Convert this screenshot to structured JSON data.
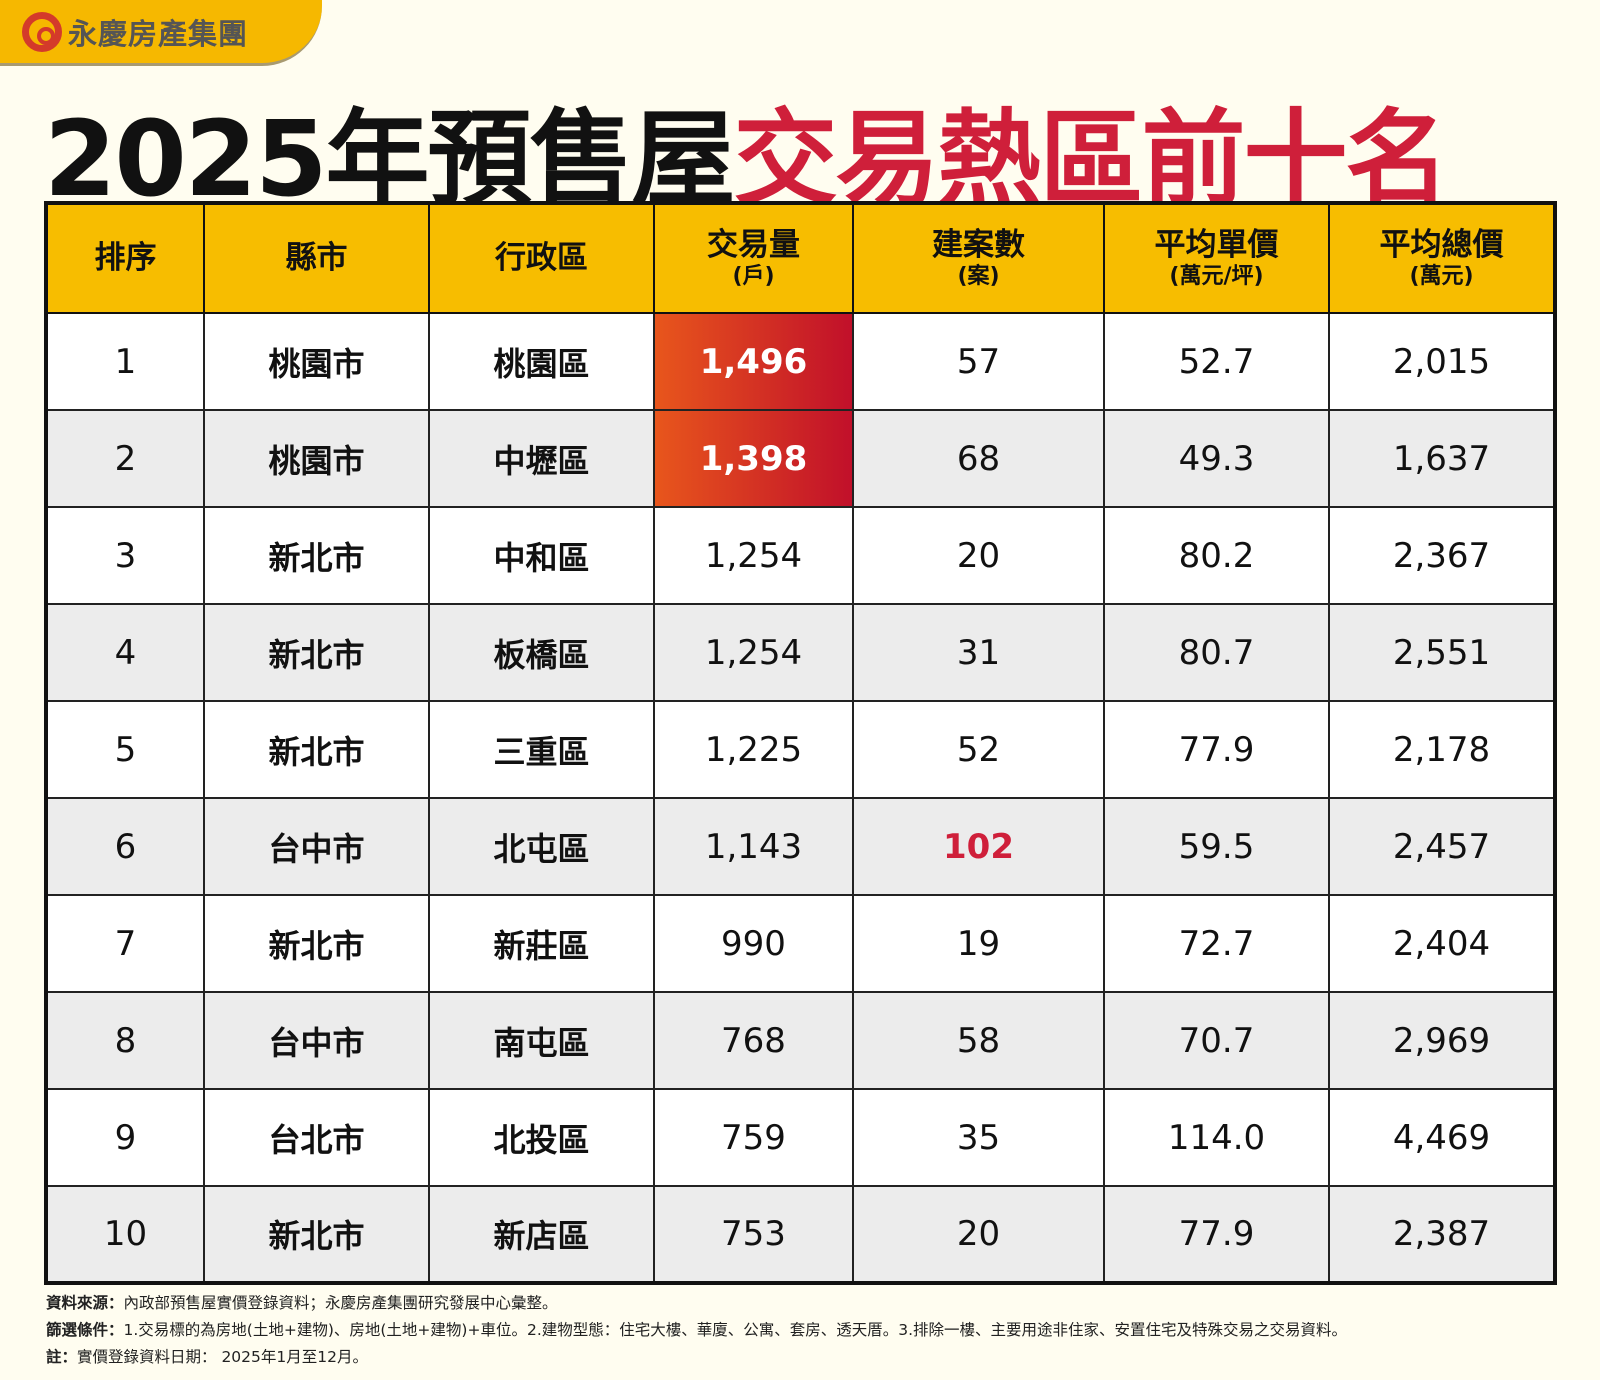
{
  "logo": {
    "text": "永慶房產集團"
  },
  "title": {
    "part1": "2025年預售屋",
    "part2": "交易熱區前十名"
  },
  "columns": [
    {
      "label": "排序",
      "unit": ""
    },
    {
      "label": "縣市",
      "unit": ""
    },
    {
      "label": "行政區",
      "unit": ""
    },
    {
      "label": "交易量",
      "unit": "(戶)"
    },
    {
      "label": "建案數",
      "unit": "(案)"
    },
    {
      "label": "平均單價",
      "unit": "(萬元/坪)"
    },
    {
      "label": "平均總價",
      "unit": "(萬元)"
    }
  ],
  "rows": [
    [
      "1",
      "桃園市",
      "桃園區",
      "1,496",
      "57",
      "52.7",
      "2,015"
    ],
    [
      "2",
      "桃園市",
      "中壢區",
      "1,398",
      "68",
      "49.3",
      "1,637"
    ],
    [
      "3",
      "新北市",
      "中和區",
      "1,254",
      "20",
      "80.2",
      "2,367"
    ],
    [
      "4",
      "新北市",
      "板橋區",
      "1,254",
      "31",
      "80.7",
      "2,551"
    ],
    [
      "5",
      "新北市",
      "三重區",
      "1,225",
      "52",
      "77.9",
      "2,178"
    ],
    [
      "6",
      "台中市",
      "北屯區",
      "1,143",
      "102",
      "59.5",
      "2,457"
    ],
    [
      "7",
      "新北市",
      "新莊區",
      "990",
      "19",
      "72.7",
      "2,404"
    ],
    [
      "8",
      "台中市",
      "南屯區",
      "768",
      "58",
      "70.7",
      "2,969"
    ],
    [
      "9",
      "台北市",
      "北投區",
      "759",
      "35",
      "114.0",
      "4,469"
    ],
    [
      "10",
      "新北市",
      "新店區",
      "753",
      "20",
      "77.9",
      "2,387"
    ]
  ],
  "colors": {
    "accent": "#cf1f3a",
    "header": "#f7bd00"
  },
  "notes": [
    {
      "label": "資料來源：",
      "text": "內政部預售屋實價登錄資料；永慶房產集團研究發展中心彙整。"
    },
    {
      "label": "篩選條件：",
      "text": "1.交易標的為房地(土地+建物)、房地(土地+建物)+車位。2.建物型態：住宅大樓、華廈、公寓、套房、透天厝。3.排除一樓、主要用途非住家、安置住宅及特殊交易之交易資料。"
    },
    {
      "label": "註：",
      "text": "實價登錄資料日期： 2025年1月至12月。"
    }
  ]
}
